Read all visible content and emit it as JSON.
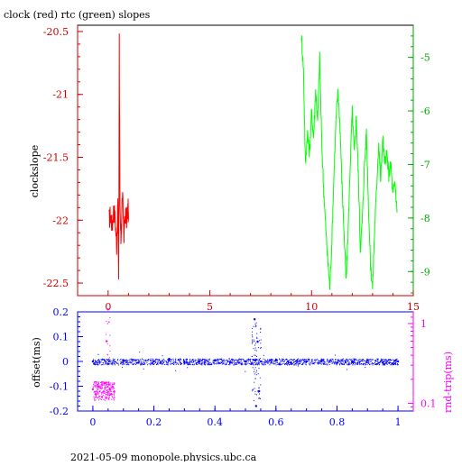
{
  "title": "clock (red) rtc (green) slopes",
  "footer": "2021-05-09  monopole.physics.ubc.ca",
  "colors": {
    "clock": "#ff0000",
    "rtc": "#00ff00",
    "offset": "#0000ff",
    "rndtrip": "#ff00ff",
    "axis_top_left": "#cc0000",
    "axis_top_right": "#00aa00",
    "axis_bottom": "#0000ff",
    "axis_bottom_right": "#ff00ff"
  },
  "chart_data": [
    {
      "type": "line",
      "title": "clock (red) rtc (green) slopes",
      "ylabel": "clockslope",
      "xlim": [
        -1.5,
        15
      ],
      "ylim": [
        -22.6,
        -20.45
      ],
      "y2lim": [
        -9.45,
        -4.4
      ],
      "x_ticks": [
        0,
        5,
        10,
        15
      ],
      "x_tick_labels": [
        "0",
        "5",
        "10",
        "15"
      ],
      "y_ticks": [
        -20.5,
        -21,
        -21.5,
        -22,
        -22.5
      ],
      "y_tick_labels": [
        "-20.5",
        "-21",
        "-21.5",
        "-22",
        "-22.5"
      ],
      "y2_ticks": [
        -5,
        -6,
        -7,
        -8,
        -9
      ],
      "y2_tick_labels": [
        "-5",
        "-6",
        "-7",
        "-8",
        "-9"
      ],
      "series": [
        {
          "axis": "left",
          "color": "#ff0000",
          "points": [
            [
              0.05,
              -22.0
            ],
            [
              0.12,
              -21.95
            ],
            [
              0.2,
              -22.05
            ],
            [
              0.28,
              -21.9
            ],
            [
              0.35,
              -22.0
            ],
            [
              0.42,
              -22.2
            ],
            [
              0.48,
              -21.85
            ],
            [
              0.52,
              -22.45
            ],
            [
              0.55,
              -20.55
            ],
            [
              0.58,
              -21.95
            ],
            [
              0.63,
              -22.15
            ],
            [
              0.7,
              -21.8
            ],
            [
              0.78,
              -22.1
            ],
            [
              0.85,
              -21.95
            ],
            [
              0.92,
              -22.0
            ],
            [
              0.98,
              -21.9
            ],
            [
              1.0,
              -22.0
            ]
          ]
        },
        {
          "axis": "right",
          "color": "#00ff00",
          "points": [
            [
              9.5,
              -4.6
            ],
            [
              9.6,
              -5.2
            ],
            [
              9.7,
              -7.0
            ],
            [
              9.8,
              -6.4
            ],
            [
              9.9,
              -6.8
            ],
            [
              10.0,
              -6.0
            ],
            [
              10.1,
              -6.5
            ],
            [
              10.2,
              -5.6
            ],
            [
              10.3,
              -6.2
            ],
            [
              10.4,
              -5.0
            ],
            [
              10.5,
              -6.6
            ],
            [
              10.6,
              -7.5
            ],
            [
              10.7,
              -8.2
            ],
            [
              10.8,
              -8.8
            ],
            [
              10.9,
              -9.3
            ],
            [
              11.0,
              -8.4
            ],
            [
              11.1,
              -7.2
            ],
            [
              11.2,
              -6.2
            ],
            [
              11.3,
              -5.6
            ],
            [
              11.4,
              -6.3
            ],
            [
              11.5,
              -7.4
            ],
            [
              11.6,
              -8.3
            ],
            [
              11.7,
              -9.2
            ],
            [
              11.8,
              -8.2
            ],
            [
              11.9,
              -7.0
            ],
            [
              12.0,
              -6.0
            ],
            [
              12.1,
              -6.8
            ],
            [
              12.2,
              -6.1
            ],
            [
              12.3,
              -7.2
            ],
            [
              12.4,
              -8.6
            ],
            [
              12.5,
              -8.0
            ],
            [
              12.6,
              -7.0
            ],
            [
              12.7,
              -6.4
            ],
            [
              12.8,
              -7.8
            ],
            [
              12.9,
              -8.9
            ],
            [
              13.0,
              -9.3
            ],
            [
              13.1,
              -8.2
            ],
            [
              13.2,
              -7.4
            ],
            [
              13.3,
              -6.6
            ],
            [
              13.4,
              -7.3
            ],
            [
              13.5,
              -6.5
            ],
            [
              13.6,
              -7.0
            ],
            [
              13.7,
              -6.8
            ],
            [
              13.8,
              -7.2
            ],
            [
              13.9,
              -7.0
            ],
            [
              14.0,
              -7.6
            ],
            [
              14.1,
              -7.3
            ],
            [
              14.2,
              -7.9
            ]
          ]
        }
      ]
    },
    {
      "type": "scatter",
      "ylabel": "offset(ms)",
      "y2label": "rnd-trip(ms)",
      "xlim": [
        -0.05,
        1.05
      ],
      "ylim": [
        -0.2,
        0.2
      ],
      "y2lim": [
        0.08,
        1.4
      ],
      "y2_log": true,
      "x_ticks": [
        0,
        0.2,
        0.4,
        0.6,
        0.8,
        1
      ],
      "x_tick_labels": [
        "0",
        "0.2",
        "0.4",
        "0.6",
        "0.8",
        "1"
      ],
      "y_ticks": [
        0.2,
        0.1,
        0,
        -0.1,
        -0.2
      ],
      "y_tick_labels": [
        "0.2",
        "0.1",
        "0",
        "-0.1",
        "-0.2"
      ],
      "y2_ticks": [
        1,
        0.1
      ],
      "y2_tick_labels": [
        "1",
        "0.1"
      ],
      "series": [
        {
          "axis": "left",
          "color": "#0000ff",
          "points": [
            [
              0.0,
              0.0
            ],
            [
              0.05,
              -0.01
            ],
            [
              0.1,
              0.005
            ],
            [
              0.15,
              -0.005
            ],
            [
              0.2,
              0.0
            ],
            [
              0.25,
              0.01
            ],
            [
              0.3,
              -0.005
            ],
            [
              0.35,
              0.0
            ],
            [
              0.4,
              0.005
            ],
            [
              0.45,
              -0.005
            ],
            [
              0.5,
              0.0
            ],
            [
              0.52,
              -0.01
            ],
            [
              0.53,
              0.17
            ],
            [
              0.535,
              -0.18
            ],
            [
              0.54,
              0.08
            ],
            [
              0.545,
              -0.12
            ],
            [
              0.55,
              0.0
            ],
            [
              0.6,
              0.005
            ],
            [
              0.65,
              -0.005
            ],
            [
              0.7,
              0.0
            ],
            [
              0.75,
              0.005
            ],
            [
              0.8,
              -0.005
            ],
            [
              0.85,
              0.0
            ],
            [
              0.9,
              0.005
            ],
            [
              0.95,
              -0.005
            ],
            [
              1.0,
              0.0
            ]
          ]
        },
        {
          "axis": "right",
          "color": "#ff00ff",
          "points": [
            [
              0.0,
              0.15
            ],
            [
              0.01,
              0.13
            ],
            [
              0.02,
              0.16
            ],
            [
              0.03,
              0.12
            ],
            [
              0.035,
              0.14
            ],
            [
              0.04,
              0.18
            ],
            [
              0.045,
              0.6
            ],
            [
              0.05,
              1.5
            ],
            [
              0.055,
              0.15
            ],
            [
              0.06,
              0.13
            ],
            [
              0.065,
              0.16
            ],
            [
              0.07,
              0.14
            ]
          ]
        }
      ]
    }
  ]
}
